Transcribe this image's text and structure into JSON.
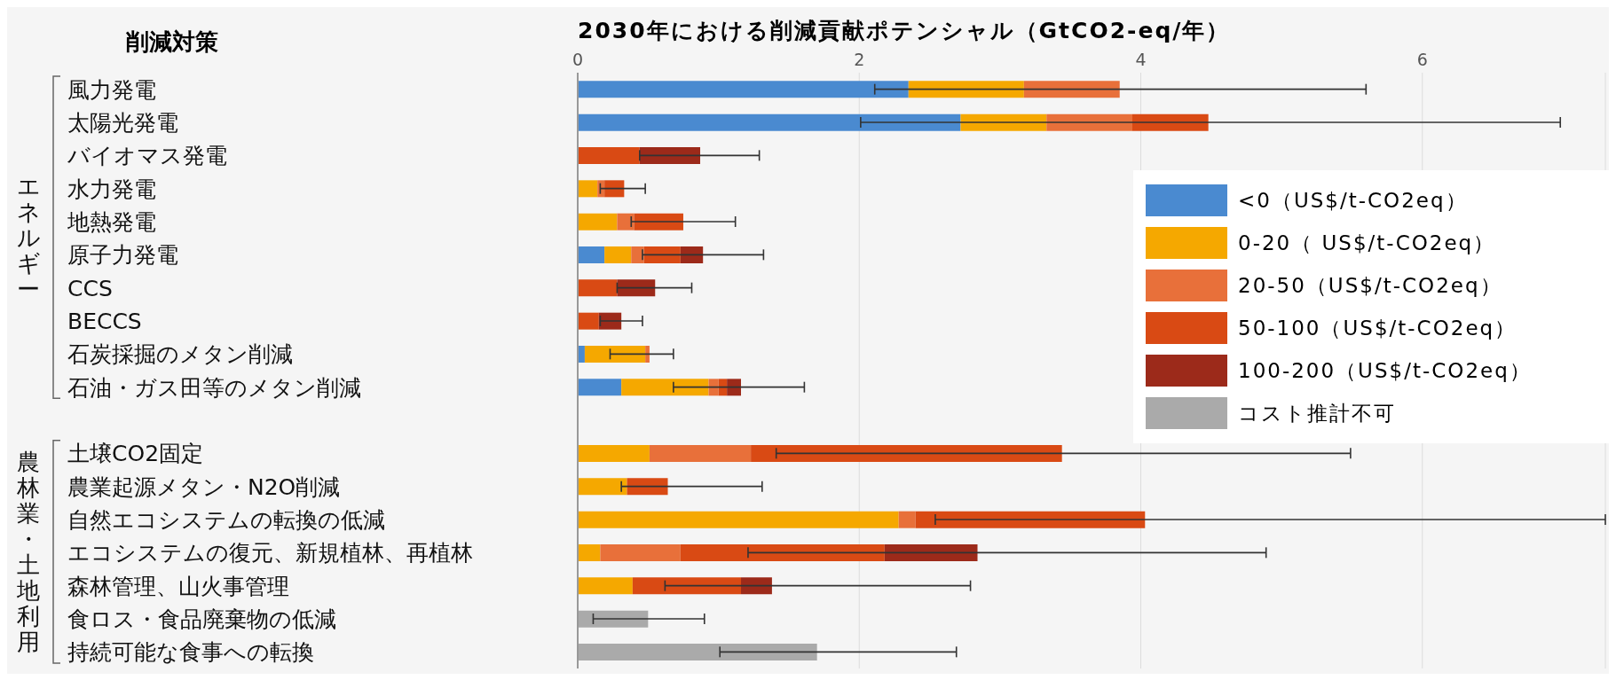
{
  "chart_data": {
    "type": "bar",
    "orientation": "horizontal",
    "stacked": true,
    "xlabel": "2030年における削減貢献ポテンシャル（GtCO2-eq/年）",
    "ylabel": "削減対策",
    "categories": [
      "風力発電",
      "太陽光発電",
      "バイオマス発電",
      "水力発電",
      "地熱発電",
      "原子力発電",
      "CCS",
      "BECCS",
      "石炭採掘のメタン削減",
      "石油・ガス田等のメタン削減",
      null,
      "土壌CO2固定",
      "農業起源メタン・N2O削減",
      "自然エコシステムの転換の低減",
      "エコシステムの復元、新規植林、再植林",
      "森林管理、山火事管理",
      "食ロス・食品廃棄物の低減",
      "持続可能な食事への転換"
    ],
    "series": [
      {
        "name": "<0（US$/t-CO2eq）",
        "color": "#4a8ad0",
        "values": [
          2.35,
          2.72,
          null,
          null,
          null,
          0.19,
          null,
          null,
          0.05,
          0.31,
          null,
          null,
          null,
          null,
          null,
          null,
          null,
          null
        ]
      },
      {
        "name": "0-20（ US$/t-CO2eq）",
        "color": "#f5a800",
        "values": [
          0.82,
          0.61,
          null,
          0.14,
          0.28,
          0.19,
          null,
          null,
          0.43,
          0.62,
          null,
          0.51,
          0.35,
          2.28,
          0.16,
          0.39,
          null,
          null
        ]
      },
      {
        "name": "20-50（US$/t-CO2eq）",
        "color": "#e8703a",
        "values": [
          0.68,
          0.61,
          null,
          0.05,
          0.12,
          0.09,
          null,
          null,
          0.03,
          0.07,
          null,
          0.72,
          null,
          0.12,
          0.57,
          null,
          null,
          null
        ],
        "errors": [
          [
            2.11,
            5.6
          ],
          null,
          null,
          null,
          null,
          null,
          null,
          null,
          [
            0.23,
            0.68
          ],
          null,
          null,
          null,
          null,
          null,
          null,
          null,
          null,
          null
        ]
      },
      {
        "name": "50-100（US$/t-CO2eq）",
        "color": "#d94a14",
        "values": [
          null,
          0.54,
          0.44,
          0.14,
          0.35,
          0.26,
          0.28,
          0.15,
          null,
          0.06,
          null,
          2.21,
          0.29,
          1.63,
          1.45,
          0.77,
          null,
          null
        ],
        "errors": [
          null,
          [
            2.01,
            6.98
          ],
          null,
          [
            0.16,
            0.48
          ],
          [
            0.38,
            1.12
          ],
          null,
          null,
          null,
          null,
          null,
          null,
          [
            1.41,
            5.49
          ],
          [
            0.31,
            1.31
          ],
          [
            2.54,
            7.3
          ],
          null,
          null,
          null,
          null
        ]
      },
      {
        "name": "100-200（US$/t-CO2eq）",
        "color": "#9c2a1a",
        "values": [
          null,
          null,
          0.43,
          null,
          null,
          0.16,
          0.27,
          0.16,
          null,
          0.1,
          null,
          null,
          null,
          null,
          0.66,
          0.22,
          null,
          null
        ],
        "errors": [
          null,
          null,
          [
            0.44,
            1.29
          ],
          null,
          null,
          [
            0.46,
            1.32
          ],
          [
            0.28,
            0.81
          ],
          [
            0.16,
            0.46
          ],
          null,
          [
            0.68,
            1.61
          ],
          null,
          null,
          null,
          null,
          [
            1.21,
            4.89
          ],
          [
            0.62,
            2.79
          ],
          null,
          null
        ]
      },
      {
        "name": "コスト推計不可",
        "color": "#aaaaaa",
        "values": [
          null,
          null,
          null,
          null,
          null,
          null,
          null,
          null,
          null,
          null,
          null,
          null,
          null,
          null,
          null,
          null,
          0.5,
          1.7
        ],
        "errors": [
          null,
          null,
          null,
          null,
          null,
          null,
          null,
          null,
          null,
          null,
          null,
          null,
          null,
          null,
          null,
          null,
          [
            0.11,
            0.9
          ],
          [
            1.01,
            2.69
          ]
        ]
      }
    ],
    "annotations": [
      "エネルギー",
      "農林業・土地利用"
    ],
    "xlim": [
      0,
      7.3
    ],
    "xticks": [
      0,
      2,
      4,
      6
    ],
    "grid": "x",
    "legend": "right"
  }
}
